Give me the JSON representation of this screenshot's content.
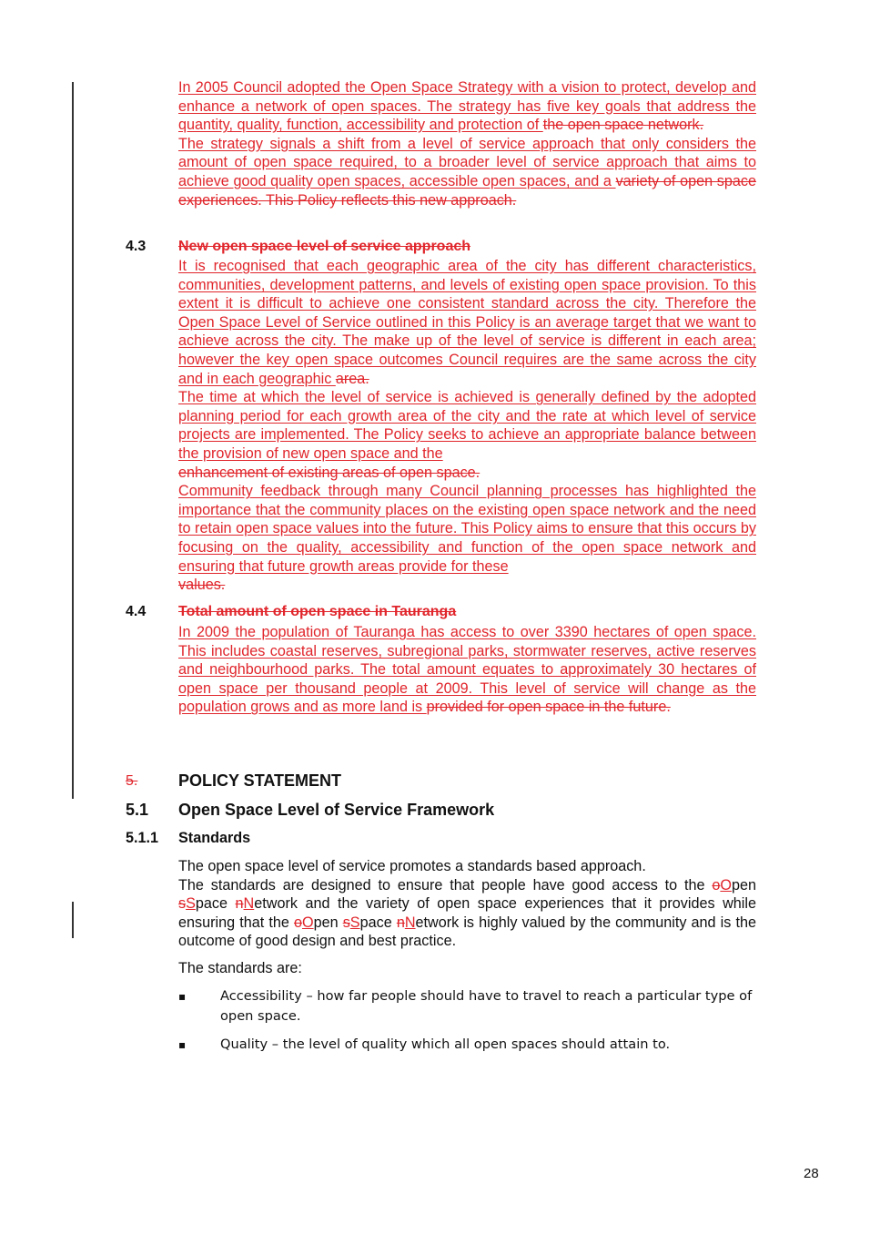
{
  "intro": {
    "p1_ins": "In 2005 Council adopted the Open Space Strategy with a vision to protect, develop and enhance a network of open spaces. The strategy has five key goals that address the quantity, quality, function, accessibility and protection of ",
    "p1_del": "the open space network.",
    "p2_ins": "The strategy signals a shift from a level of service approach that only considers the amount of open space required, to a broader level of service approach that aims to achieve good quality open spaces, accessible open spaces, and a ",
    "p2_del": "variety of open space experiences. This Policy reflects this new approach."
  },
  "section_4_3": {
    "number": "4.3",
    "title": "New open space level of service approach",
    "p1_ins": "It is recognised that each geographic area of the city has different characteristics, communities, development patterns, and levels of existing open space provision. To this extent it is difficult to achieve one consistent standard across the city. Therefore the Open Space Level of Service outlined in this Policy is an average target that we want to achieve across the city.  The make up of the level of service is different in each area; however the key open space outcomes Council requires are the same across the city and in each geographic ",
    "p1_del": "area.",
    "p2_ins": "The time at which the level of service is achieved is generally defined by the adopted planning period for each growth area of the city and the rate at which level of service projects are implemented. The Policy seeks to achieve an appropriate balance between the provision of new open space and the",
    "p2_del": "enhancement of existing areas of open space.",
    "p3_ins": "Community feedback through many Council planning processes has highlighted the importance that the community places on the existing open space network and the need to retain open space values into the future. This Policy aims to ensure that this occurs by focusing on the quality, accessibility and function of the open space network and ensuring that future growth areas provide for these",
    "p3_del": "values."
  },
  "section_4_4": {
    "number": "4.4",
    "title": "Total amount of open space in Tauranga",
    "p1_ins": "In 2009 the population of Tauranga has access to over 3390 hectares of open space. This includes coastal reserves, subregional parks, stormwater reserves, active reserves and neighbourhood parks. The total amount equates to approximately 30 hectares of open space per thousand people at 2009. This level of service will change as the population  grows and as  more land is ",
    "p1_del": "provided for open space in the future."
  },
  "section_5": {
    "number": "5.",
    "title": "POLICY STATEMENT"
  },
  "section_5_1": {
    "number": "5.1",
    "title": "Open Space Level of Service Framework"
  },
  "section_5_1_1": {
    "number": "5.1.1",
    "title": "Standards",
    "p1": "The open space level of service promotes a standards based approach.",
    "p2_a": "The standards are designed to ensure that people have good access to the ",
    "p2_b": "pen ",
    "p2_c": "pace ",
    "p2_d": "etwork and the variety of open space experiences that it provides while ensuring that the ",
    "p2_e": "pen ",
    "p2_f": "pace ",
    "p2_g": "etwork is highly valued by the community and is the outcome of good design and best practice.",
    "del_o": "o",
    "ins_O": "O",
    "del_s": "s",
    "ins_S": "S",
    "del_n": "n",
    "ins_N": "N",
    "p3": "The standards are:",
    "bullets": [
      "Accessibility – how far people should have to travel to reach a particular type of open space.",
      "Quality – the level of quality which all open spaces should attain to."
    ],
    "bullet_mark": "▪"
  },
  "page_number": "28"
}
